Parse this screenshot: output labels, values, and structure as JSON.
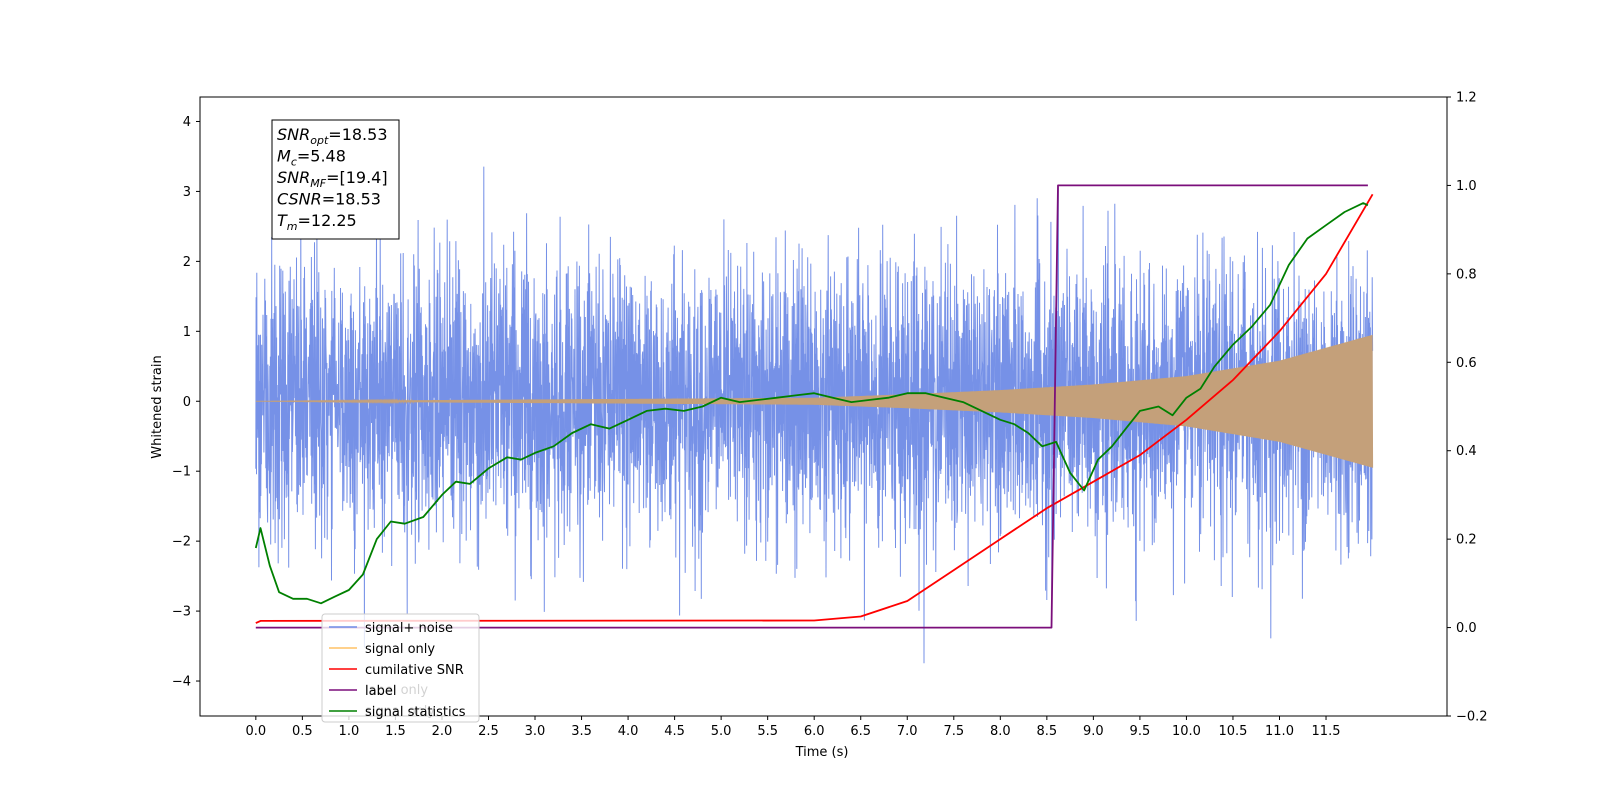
{
  "chart_data": {
    "type": "line",
    "xlabel": "Time (s)",
    "ylabel": "Whitened strain",
    "x_ticks": [
      "0.0",
      "0.5",
      "1.0",
      "1.5",
      "2.0",
      "2.5",
      "3.0",
      "3.5",
      "4.0",
      "4.5",
      "5.0",
      "5.5",
      "6.0",
      "6.5",
      "7.0",
      "7.5",
      "8.0",
      "8.5",
      "9.0",
      "9.5",
      "10.0",
      "10.5",
      "11.0",
      "11.5"
    ],
    "y_left_ticks": [
      "−4",
      "−3",
      "−2",
      "−1",
      "0",
      "1",
      "2",
      "3",
      "4"
    ],
    "y_right_ticks": [
      "−0.2",
      "0.0",
      "0.2",
      "0.4",
      "0.6",
      "0.8",
      "1.0",
      "1.2"
    ],
    "xlim": [
      -0.6,
      12.8
    ],
    "ylim_left": [
      -4.5,
      4.35
    ],
    "ylim_right": [
      -0.2,
      1.2
    ],
    "annotation": [
      {
        "base": "SNR",
        "sub": "opt",
        "rest": "=18.53"
      },
      {
        "base": "M",
        "sub": "c",
        "rest": "=5.48"
      },
      {
        "base": "SNR",
        "sub": "MF",
        "rest": "=[19.4]"
      },
      {
        "base": "CSNR",
        "sub": "",
        "rest": "=18.53"
      },
      {
        "base": "T",
        "sub": "m",
        "rest": "=12.25"
      }
    ],
    "legend": {
      "placement": "lower-left",
      "entries": [
        "signal+ noise",
        "signal only",
        "cumilative SNR",
        "label",
        "signal statistics"
      ],
      "hidden_entries": [
        "label only",
        "signal only"
      ]
    },
    "series": [
      {
        "name": "signal+ noise",
        "axis": "left",
        "color": "#6f8be6",
        "kind": "noise",
        "x_range": [
          0.0,
          12.0
        ],
        "y_range": [
          -4.05,
          3.95
        ],
        "typical_amplitude": 1.3
      },
      {
        "name": "signal only",
        "axis": "left",
        "color": "#c4a07a",
        "kind": "chirp",
        "x_range": [
          0.0,
          12.0
        ],
        "envelope": {
          "x": [
            0,
            6.0,
            7.0,
            8.0,
            9.0,
            10.0,
            11.0,
            12.0
          ],
          "y": [
            0.0,
            0.05,
            0.1,
            0.16,
            0.24,
            0.36,
            0.58,
            0.95
          ]
        }
      },
      {
        "name": "cumilative SNR",
        "axis": "right",
        "color": "#ff0000",
        "x": [
          0.0,
          0.05,
          6.0,
          6.5,
          7.0,
          7.5,
          8.0,
          8.5,
          9.0,
          9.5,
          10.0,
          10.5,
          11.0,
          11.5,
          12.0
        ],
        "y": [
          0.01,
          0.015,
          0.016,
          0.025,
          0.06,
          0.13,
          0.2,
          0.27,
          0.33,
          0.39,
          0.47,
          0.56,
          0.67,
          0.8,
          0.98
        ]
      },
      {
        "name": "label",
        "axis": "right",
        "color": "#7b0f7b",
        "x": [
          0.0,
          8.55,
          8.62,
          11.95
        ],
        "y": [
          0.0,
          0.0,
          1.0,
          1.0
        ]
      },
      {
        "name": "signal statistics",
        "axis": "right",
        "color": "#008000",
        "x": [
          0.0,
          0.05,
          0.15,
          0.25,
          0.4,
          0.55,
          0.7,
          0.85,
          1.0,
          1.15,
          1.3,
          1.45,
          1.6,
          1.8,
          2.0,
          2.15,
          2.3,
          2.5,
          2.7,
          2.85,
          3.0,
          3.2,
          3.4,
          3.6,
          3.8,
          4.0,
          4.2,
          4.4,
          4.6,
          4.8,
          5.0,
          5.2,
          5.4,
          5.6,
          5.8,
          6.0,
          6.2,
          6.4,
          6.6,
          6.8,
          7.0,
          7.2,
          7.4,
          7.6,
          7.8,
          8.0,
          8.15,
          8.3,
          8.45,
          8.6,
          8.75,
          8.9,
          9.05,
          9.2,
          9.35,
          9.5,
          9.7,
          9.85,
          10.0,
          10.15,
          10.3,
          10.5,
          10.7,
          10.9,
          11.1,
          11.3,
          11.5,
          11.7,
          11.9,
          11.95
        ],
        "y": [
          0.18,
          0.225,
          0.14,
          0.08,
          0.065,
          0.065,
          0.055,
          0.07,
          0.085,
          0.12,
          0.2,
          0.24,
          0.235,
          0.25,
          0.3,
          0.33,
          0.325,
          0.36,
          0.385,
          0.38,
          0.395,
          0.41,
          0.44,
          0.46,
          0.45,
          0.47,
          0.49,
          0.495,
          0.49,
          0.5,
          0.52,
          0.51,
          0.515,
          0.52,
          0.525,
          0.53,
          0.52,
          0.51,
          0.515,
          0.52,
          0.53,
          0.53,
          0.52,
          0.51,
          0.49,
          0.47,
          0.46,
          0.44,
          0.41,
          0.42,
          0.35,
          0.31,
          0.38,
          0.41,
          0.45,
          0.49,
          0.5,
          0.48,
          0.52,
          0.54,
          0.59,
          0.64,
          0.68,
          0.73,
          0.82,
          0.88,
          0.91,
          0.94,
          0.96,
          0.955
        ]
      }
    ]
  }
}
